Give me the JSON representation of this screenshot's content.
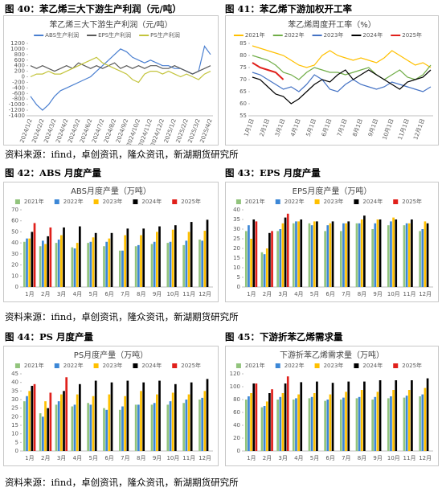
{
  "figure_captions": [
    "图 40：苯乙烯三大下游生产利润（元/吨）",
    "图 41：苯乙烯下游加权开工率",
    "图 42：ABS 月度产量",
    "图 43：EPS 月度产量",
    "图 44：PS 月度产量",
    "图 45：下游折苯乙烯需求量"
  ],
  "source_notes": [
    "资料来源：ifind，卓创资讯，隆众资讯，新湖期货研究所",
    "资料来源：ifind，卓创资讯，隆众资讯，新湖期货研究所",
    "资料来源：ifind，卓创资讯，隆众资讯，新湖期货研究所"
  ],
  "chart_data": [
    {
      "type": "line",
      "title": "苯乙烯三大下游生产利润（元/吨）",
      "categories": [
        "2024/1/2",
        null,
        "2024/2/2",
        null,
        "2024/3/2",
        null,
        "2024/4/2",
        null,
        "2024/5/2",
        null,
        "2024/6/2",
        null,
        "2024/7/2",
        null,
        "2024/8/2",
        null,
        "2024/9/2",
        null,
        "2024/10/2",
        null,
        "2024/11/2",
        null,
        "2024/12/2",
        null,
        "2025/1/2",
        null,
        "2025/2/2",
        null,
        "2025/3/2",
        null,
        "2025/4/2"
      ],
      "series": [
        {
          "name": "ABS生产利润",
          "color": "#4a7fd0",
          "values": [
            -700,
            -1000,
            -1200,
            -1000,
            -700,
            -500,
            -400,
            -300,
            -200,
            -100,
            0,
            200,
            400,
            600,
            800,
            1000,
            900,
            700,
            600,
            500,
            600,
            500,
            400,
            400,
            300,
            300,
            200,
            100,
            200,
            1100,
            800
          ]
        },
        {
          "name": "EPS生产利润",
          "color": "#595959",
          "values": [
            400,
            300,
            400,
            300,
            200,
            300,
            400,
            300,
            500,
            400,
            300,
            400,
            300,
            400,
            500,
            300,
            400,
            300,
            400,
            300,
            400,
            400,
            300,
            300,
            400,
            300,
            200,
            100,
            200,
            300,
            400
          ]
        },
        {
          "name": "PS生产利润",
          "color": "#c3c43c",
          "values": [
            0,
            100,
            100,
            200,
            100,
            100,
            200,
            300,
            400,
            500,
            600,
            700,
            500,
            400,
            300,
            200,
            100,
            -100,
            -200,
            100,
            200,
            200,
            100,
            200,
            100,
            0,
            100,
            0,
            -100,
            100,
            200
          ]
        }
      ],
      "ylim": [
        -1400,
        1200
      ],
      "yticks": [
        -1400,
        -1200,
        -1000,
        -800,
        -600,
        -400,
        -200,
        0,
        200,
        400,
        600,
        800,
        1000,
        1200
      ],
      "grid": false,
      "legend": "top"
    },
    {
      "type": "line",
      "title": "苯乙烯周度开工率（%）",
      "categories": [
        "1月1日",
        null,
        "2月1日",
        null,
        "3月1日",
        null,
        "4月1日",
        null,
        "5月1日",
        null,
        "6月1日",
        null,
        "7月1日",
        null,
        "8月1日",
        null,
        "9月1日",
        null,
        "10月1日",
        null,
        "11月1日",
        null,
        "12月1日",
        null
      ],
      "series": [
        {
          "name": "2021年",
          "color": "#ffc000",
          "values": [
            84,
            83,
            82,
            81,
            80,
            78,
            76,
            75,
            76,
            80,
            82,
            80,
            79,
            78,
            79,
            78,
            77,
            79,
            82,
            80,
            78,
            76,
            77,
            75
          ]
        },
        {
          "name": "2022年",
          "color": "#70ad47",
          "values": [
            80,
            79,
            78,
            76,
            73,
            72,
            70,
            73,
            75,
            74,
            73,
            73,
            72,
            73,
            74,
            75,
            72,
            70,
            72,
            74,
            71,
            70,
            72,
            76
          ]
        },
        {
          "name": "2023年",
          "color": "#4472c4",
          "values": [
            73,
            72,
            70,
            68,
            66,
            67,
            65,
            68,
            72,
            70,
            66,
            65,
            68,
            70,
            68,
            67,
            66,
            67,
            69,
            68,
            67,
            66,
            65,
            67
          ]
        },
        {
          "name": "2024年",
          "color": "#000000",
          "values": [
            71,
            70,
            67,
            64,
            63,
            60,
            62,
            65,
            68,
            70,
            69,
            72,
            74,
            70,
            72,
            74,
            72,
            70,
            68,
            66,
            69,
            70,
            71,
            74
          ]
        },
        {
          "name": "2025年",
          "color": "#e0201b",
          "values": [
            77,
            75,
            74,
            73,
            70,
            null,
            null,
            null,
            null,
            null,
            null,
            null,
            null,
            null,
            null,
            null,
            null,
            null,
            null,
            null,
            null,
            null,
            null,
            null
          ]
        }
      ],
      "ylim": [
        55,
        85
      ],
      "yticks": [
        55,
        60,
        65,
        70,
        75,
        80,
        85
      ],
      "grid": false,
      "legend": "top"
    },
    {
      "type": "bar",
      "title": "ABS月度产量（万吨）",
      "categories": [
        "1月",
        "2月",
        "3月",
        "4月",
        "5月",
        "6月",
        "7月",
        "8月",
        "9月",
        "10月",
        "11月",
        "12月"
      ],
      "series": [
        {
          "name": "2021年",
          "color": "#92c47d",
          "values": [
            41,
            37,
            40,
            36,
            40,
            37,
            33,
            37,
            39,
            40,
            38,
            43
          ]
        },
        {
          "name": "2022年",
          "color": "#3c87d6",
          "values": [
            44,
            42,
            43,
            35,
            41,
            41,
            33,
            38,
            41,
            41,
            42,
            42
          ]
        },
        {
          "name": "2023年",
          "color": "#ffc000",
          "values": [
            44,
            39,
            47,
            40,
            45,
            44,
            47,
            47,
            50,
            52,
            50,
            51
          ]
        },
        {
          "name": "2024年",
          "color": "#000000",
          "values": [
            50,
            46,
            54,
            55,
            49,
            49,
            53,
            53,
            55,
            56,
            59,
            61
          ]
        },
        {
          "name": "2025年",
          "color": "#e0201b",
          "values": [
            58,
            54,
            null,
            null,
            null,
            null,
            null,
            null,
            null,
            null,
            null,
            null
          ]
        }
      ],
      "ylim": [
        0,
        70
      ],
      "yticks": [
        0,
        10,
        20,
        30,
        40,
        50,
        60,
        70
      ],
      "grid": false,
      "legend": "top"
    },
    {
      "type": "bar",
      "title": "EPS月度产量（万吨）",
      "categories": [
        "1月",
        "2月",
        "3月",
        "4月",
        "5月",
        "6月",
        "7月",
        "8月",
        "9月",
        "10月",
        "11月",
        "12月"
      ],
      "series": [
        {
          "name": "2021年",
          "color": "#92c47d",
          "values": [
            29,
            18,
            29,
            33,
            33,
            29,
            29,
            33,
            30,
            32,
            32,
            29
          ]
        },
        {
          "name": "2022年",
          "color": "#3c87d6",
          "values": [
            32,
            17,
            30,
            34,
            32,
            32,
            33,
            33,
            33,
            34,
            33,
            30
          ]
        },
        {
          "name": "2023年",
          "color": "#ffc000",
          "values": [
            25,
            20,
            33,
            34,
            34,
            33,
            33,
            35,
            35,
            36,
            33,
            34
          ]
        },
        {
          "name": "2024年",
          "color": "#000000",
          "values": [
            35,
            28,
            36,
            35,
            34,
            34,
            34,
            37,
            35,
            35,
            35,
            33
          ]
        },
        {
          "name": "2025年",
          "color": "#e0201b",
          "values": [
            34,
            29,
            38,
            null,
            null,
            null,
            null,
            null,
            null,
            null,
            null,
            null
          ]
        }
      ],
      "ylim": [
        0,
        40
      ],
      "yticks": [
        0,
        5,
        10,
        15,
        20,
        25,
        30,
        35,
        40
      ],
      "grid": false,
      "legend": "top"
    },
    {
      "type": "bar",
      "title": "PS月度产量（万吨）",
      "categories": [
        "1月",
        "2月",
        "3月",
        "4月",
        "5月",
        "6月",
        "7月",
        "8月",
        "9月",
        "10月",
        "11月",
        "12月"
      ],
      "series": [
        {
          "name": "2021年",
          "color": "#92c47d",
          "values": [
            29,
            22,
            27,
            26,
            28,
            25,
            24,
            27,
            27,
            27,
            28,
            30
          ]
        },
        {
          "name": "2022年",
          "color": "#3c87d6",
          "values": [
            32,
            20,
            29,
            27,
            27,
            24,
            26,
            27,
            28,
            29,
            30,
            31
          ]
        },
        {
          "name": "2023年",
          "color": "#ffc000",
          "values": [
            35,
            29,
            33,
            33,
            32,
            33,
            32,
            35,
            33,
            34,
            33,
            35
          ]
        },
        {
          "name": "2024年",
          "color": "#000000",
          "values": [
            38,
            25,
            35,
            39,
            41,
            40,
            41,
            40,
            41,
            39,
            40,
            42
          ]
        },
        {
          "name": "2025年",
          "color": "#e0201b",
          "values": [
            39,
            34,
            43,
            null,
            null,
            null,
            null,
            null,
            null,
            null,
            null,
            null
          ]
        }
      ],
      "ylim": [
        0,
        45
      ],
      "yticks": [
        0,
        5,
        10,
        15,
        20,
        25,
        30,
        35,
        40,
        45
      ],
      "grid": false,
      "legend": "top"
    },
    {
      "type": "bar",
      "title": "下游折苯乙烯需求量（万吨）",
      "categories": [
        "1月",
        "2月",
        "3月",
        "4月",
        "5月",
        "6月",
        "7月",
        "8月",
        "9月",
        "10月",
        "11月",
        "12月"
      ],
      "series": [
        {
          "name": "2021年",
          "color": "#92c47d",
          "values": [
            80,
            68,
            80,
            80,
            82,
            78,
            80,
            82,
            80,
            82,
            83,
            85
          ]
        },
        {
          "name": "2022年",
          "color": "#3c87d6",
          "values": [
            85,
            70,
            84,
            82,
            84,
            80,
            83,
            84,
            84,
            85,
            86,
            88
          ]
        },
        {
          "name": "2023年",
          "color": "#ffc000",
          "values": [
            90,
            77,
            90,
            88,
            90,
            88,
            92,
            95,
            92,
            95,
            95,
            98
          ]
        },
        {
          "name": "2024年",
          "color": "#000000",
          "values": [
            105,
            90,
            105,
            107,
            108,
            106,
            108,
            108,
            110,
            110,
            110,
            113
          ]
        },
        {
          "name": "2025年",
          "color": "#e0201b",
          "values": [
            105,
            96,
            116,
            null,
            null,
            null,
            null,
            null,
            null,
            null,
            null,
            null
          ]
        }
      ],
      "ylim": [
        0,
        120
      ],
      "yticks": [
        0,
        20,
        40,
        60,
        80,
        100,
        120
      ],
      "grid": false,
      "legend": "top"
    }
  ]
}
